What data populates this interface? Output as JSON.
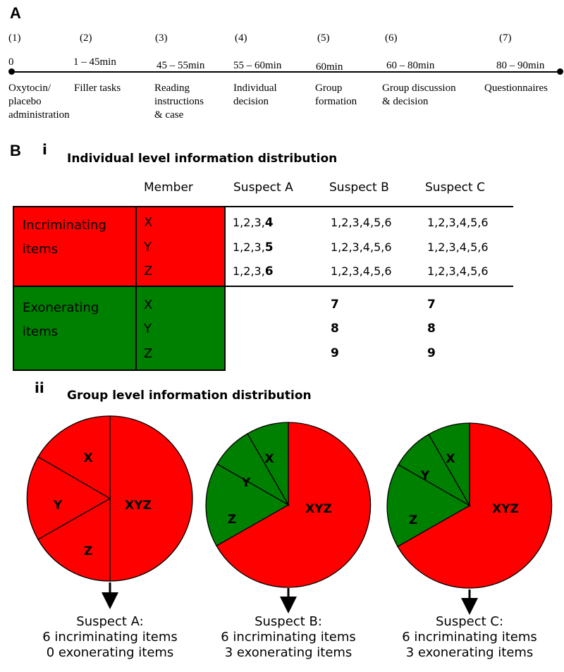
{
  "panel_a": {
    "letter": "A",
    "steps": [
      {
        "num": "(1)",
        "time": "0",
        "label_lines": [
          "Oxytocin/",
          "placebo",
          "administration"
        ]
      },
      {
        "num": "(2)",
        "time": "1 – 45min",
        "label_lines": [
          "Filler tasks"
        ]
      },
      {
        "num": "(3)",
        "time": "45 – 55min",
        "label_lines": [
          "Reading",
          "instructions",
          "& case"
        ]
      },
      {
        "num": "(4)",
        "time": "55 – 60min",
        "label_lines": [
          "Individual",
          "decision"
        ]
      },
      {
        "num": "(5)",
        "time": "60min",
        "label_lines": [
          "Group",
          "formation"
        ]
      },
      {
        "num": "(6)",
        "time": "60 – 80min",
        "label_lines": [
          "Group discussion",
          "& decision"
        ]
      },
      {
        "num": "(7)",
        "time": "80 – 90min",
        "label_lines": [
          "Questionnaires"
        ]
      }
    ]
  },
  "panel_b": {
    "letter": "B",
    "part_i": {
      "numeral": "i",
      "title": "Individual level information distribution",
      "headers": [
        "Member",
        "Suspect A",
        "Suspect B",
        "Suspect C"
      ],
      "incriminating": {
        "label_lines": [
          "Incriminating",
          "items"
        ],
        "color": "#ff0000",
        "rows": [
          {
            "member": "X",
            "a_plain": "1,2,3,",
            "a_bold": "4",
            "b": "1,2,3,4,5,6",
            "c": "1,2,3,4,5,6"
          },
          {
            "member": "Y",
            "a_plain": "1,2,3,",
            "a_bold": "5",
            "b": "1,2,3,4,5,6",
            "c": "1,2,3,4,5,6"
          },
          {
            "member": "Z",
            "a_plain": "1,2,3,",
            "a_bold": "6",
            "b": "1,2,3,4,5,6",
            "c": "1,2,3,4,5,6"
          }
        ]
      },
      "exonerating": {
        "label_lines": [
          "Exonerating",
          "items"
        ],
        "color": "#008000",
        "rows": [
          {
            "member": "X",
            "a": "",
            "b": "7",
            "c": "7"
          },
          {
            "member": "Y",
            "a": "",
            "b": "8",
            "c": "8"
          },
          {
            "member": "Z",
            "a": "",
            "b": "9",
            "c": "9"
          }
        ]
      }
    },
    "part_ii": {
      "numeral": "ii",
      "title": "Group level information distribution",
      "pies": [
        {
          "slice_labels": [
            "X",
            "Y",
            "Z",
            "XYZ"
          ],
          "slice_colors": [
            "#ff0000",
            "#ff0000",
            "#ff0000",
            "#ff0000"
          ],
          "summary": [
            "Suspect A:",
            "6 incriminating items",
            "0 exonerating items"
          ]
        },
        {
          "slice_labels": [
            "X",
            "Y",
            "Z",
            "XYZ"
          ],
          "slice_colors": [
            "#008000",
            "#008000",
            "#008000",
            "#ff0000"
          ],
          "summary": [
            "Suspect B:",
            "6 incriminating items",
            "3 exonerating items"
          ]
        },
        {
          "slice_labels": [
            "X",
            "Y",
            "Z",
            "XYZ"
          ],
          "slice_colors": [
            "#008000",
            "#008000",
            "#008000",
            "#ff0000"
          ],
          "summary": [
            "Suspect C:",
            "6 incriminating items",
            "3 exonerating items"
          ]
        }
      ]
    }
  }
}
